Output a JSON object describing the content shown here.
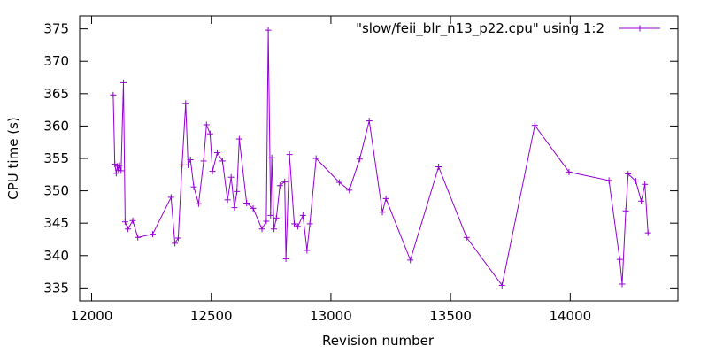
{
  "chart_data": {
    "type": "line",
    "title": "",
    "xlabel": "Revision number",
    "ylabel": "CPU time (s)",
    "xlim": [
      11950,
      14450
    ],
    "ylim": [
      333,
      377
    ],
    "xticks": [
      12000,
      12500,
      13000,
      13500,
      14000
    ],
    "yticks": [
      335,
      340,
      345,
      350,
      355,
      360,
      365,
      370,
      375
    ],
    "grid": false,
    "legend_position": "top-right",
    "series": [
      {
        "name": "\"slow/feii_blr_n13_p22.cpu\" using 1:2",
        "color": "#9400d3",
        "marker": "plus",
        "points": [
          [
            12090,
            364.8
          ],
          [
            12097,
            354.1
          ],
          [
            12103,
            352.7
          ],
          [
            12108,
            353.8
          ],
          [
            12112,
            353.2
          ],
          [
            12117,
            353.9
          ],
          [
            12123,
            353.1
          ],
          [
            12133,
            366.7
          ],
          [
            12140,
            345.2
          ],
          [
            12152,
            344.1
          ],
          [
            12172,
            345.4
          ],
          [
            12193,
            342.8
          ],
          [
            12255,
            343.3
          ],
          [
            12332,
            349.0
          ],
          [
            12348,
            341.9
          ],
          [
            12362,
            342.7
          ],
          [
            12378,
            354.0
          ],
          [
            12393,
            363.5
          ],
          [
            12403,
            354.0
          ],
          [
            12413,
            354.8
          ],
          [
            12427,
            350.6
          ],
          [
            12447,
            348.0
          ],
          [
            12468,
            354.6
          ],
          [
            12480,
            360.2
          ],
          [
            12495,
            358.8
          ],
          [
            12505,
            353.0
          ],
          [
            12525,
            355.9
          ],
          [
            12547,
            354.6
          ],
          [
            12568,
            348.6
          ],
          [
            12583,
            352.1
          ],
          [
            12597,
            347.4
          ],
          [
            12607,
            349.9
          ],
          [
            12617,
            358.0
          ],
          [
            12648,
            348.1
          ],
          [
            12675,
            347.3
          ],
          [
            12712,
            344.1
          ],
          [
            12730,
            345.3
          ],
          [
            12738,
            374.8
          ],
          [
            12748,
            346.2
          ],
          [
            12753,
            355.1
          ],
          [
            12762,
            344.1
          ],
          [
            12772,
            345.8
          ],
          [
            12787,
            350.8
          ],
          [
            12807,
            351.4
          ],
          [
            12812,
            339.5
          ],
          [
            12827,
            355.6
          ],
          [
            12847,
            344.9
          ],
          [
            12862,
            344.5
          ],
          [
            12883,
            346.2
          ],
          [
            12900,
            340.8
          ],
          [
            12912,
            344.9
          ],
          [
            12938,
            355.0
          ],
          [
            13035,
            351.3
          ],
          [
            13077,
            350.1
          ],
          [
            13120,
            354.9
          ],
          [
            13160,
            360.8
          ],
          [
            13215,
            346.7
          ],
          [
            13230,
            348.8
          ],
          [
            13332,
            339.3
          ],
          [
            13450,
            353.7
          ],
          [
            13567,
            342.8
          ],
          [
            13715,
            335.4
          ],
          [
            13852,
            360.1
          ],
          [
            13995,
            352.9
          ],
          [
            14162,
            351.6
          ],
          [
            14207,
            339.4
          ],
          [
            14217,
            335.6
          ],
          [
            14232,
            346.9
          ],
          [
            14242,
            352.6
          ],
          [
            14274,
            351.5
          ],
          [
            14297,
            348.4
          ],
          [
            14312,
            351.0
          ],
          [
            14325,
            343.5
          ]
        ]
      }
    ]
  }
}
